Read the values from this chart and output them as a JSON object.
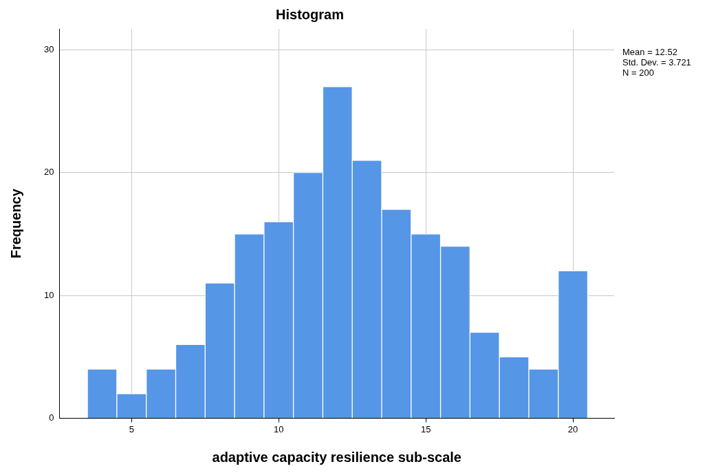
{
  "chart_data": {
    "type": "histogram",
    "title": "Histogram",
    "xlabel": "adaptive capacity resilience sub-scale",
    "ylabel": "Frequency",
    "bins": [
      3.5,
      4.5,
      5.5,
      6.5,
      7.5,
      8.5,
      9.5,
      10.5,
      11.5,
      12.5,
      13.5,
      14.5,
      15.5,
      16.5,
      17.5,
      18.5,
      19.5,
      20.5
    ],
    "values": [
      4,
      2,
      4,
      6,
      11,
      15,
      16,
      20,
      27,
      21,
      17,
      15,
      14,
      7,
      5,
      4,
      12
    ],
    "color": "#5596e6",
    "xlim": [
      2.55,
      21.4
    ],
    "xticks": [
      5,
      10,
      15,
      20
    ],
    "ylim": [
      0,
      31.7
    ],
    "yticks": [
      0,
      10,
      20,
      30
    ],
    "grid": true,
    "annotations": [
      "Mean = 12.52",
      "Std. Dev. = 3.721",
      "N = 200"
    ]
  }
}
